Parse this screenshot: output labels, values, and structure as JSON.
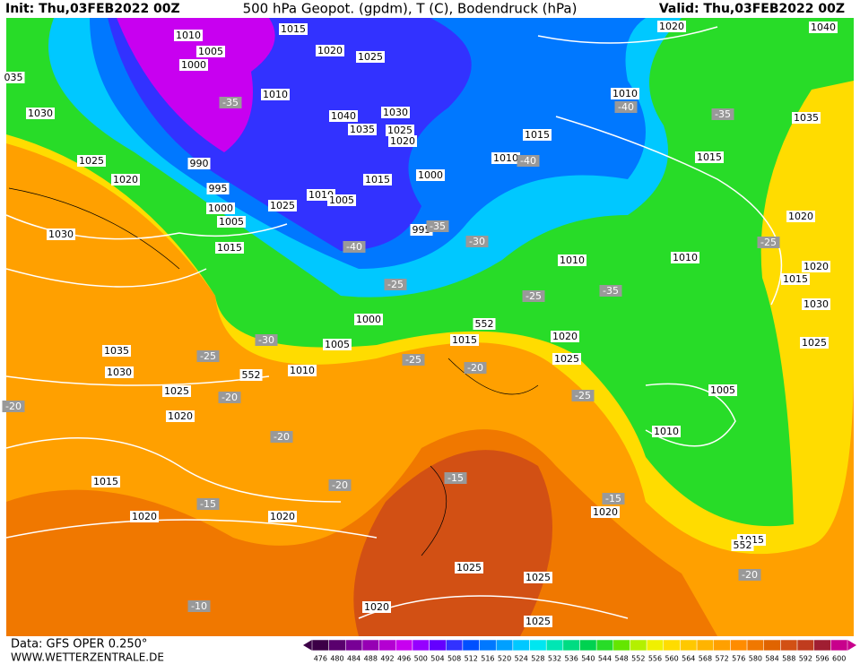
{
  "header": {
    "init": "Init: Thu,03FEB2022 00Z",
    "title": "500 hPa Geopot. (gpdm), T (C), Bodendruck (hPa)",
    "valid": "Valid: Thu,03FEB2022 00Z"
  },
  "footer": {
    "data_source": "Data: GFS OPER 0.250°",
    "website": "WWW.WETTERZENTRALE.DE"
  },
  "colorbar": {
    "labels": [
      476,
      480,
      484,
      488,
      492,
      496,
      500,
      504,
      508,
      512,
      516,
      520,
      524,
      528,
      532,
      536,
      540,
      544,
      548,
      552,
      556,
      560,
      564,
      568,
      572,
      576,
      580,
      584,
      588,
      592,
      596,
      600
    ],
    "colors": [
      "#3c0047",
      "#5a006e",
      "#780096",
      "#9600b4",
      "#b400d2",
      "#c800f0",
      "#9600ff",
      "#6400ff",
      "#3232ff",
      "#0050ff",
      "#0078ff",
      "#00a0ff",
      "#00c8ff",
      "#00e6f0",
      "#00e6b4",
      "#00dc82",
      "#00d250",
      "#28dc28",
      "#64e600",
      "#b4f000",
      "#f0f000",
      "#ffdc00",
      "#ffc800",
      "#ffb400",
      "#ffa000",
      "#ff8c00",
      "#f07800",
      "#e06400",
      "#d25014",
      "#c03c1e",
      "#a01e32",
      "#c8008c"
    ]
  },
  "map": {
    "isobar_labels": [
      "1010",
      "1005",
      "1000",
      "1015",
      "1020",
      "1025",
      "035",
      "1030",
      "1010",
      "1040",
      "1030",
      "1035",
      "1025",
      "1020",
      "1025",
      "990",
      "1020",
      "995",
      "1000",
      "1005",
      "1025",
      "1010",
      "1005",
      "1015",
      "1000",
      "995",
      "1015",
      "1030",
      "1020",
      "1040",
      "1010",
      "1015",
      "1010",
      "1015",
      "1035",
      "1020",
      "1010",
      "1010",
      "1020",
      "1015",
      "1030",
      "1000",
      "1005",
      "1010",
      "1015",
      "1020",
      "1025",
      "1025",
      "1035",
      "1030",
      "1025",
      "1020",
      "1005",
      "1010",
      "1015",
      "1020",
      "1020",
      "1020",
      "1015",
      "1025",
      "1025",
      "1020",
      "1025"
    ],
    "temperature_labels": [
      "-35",
      "-40",
      "-35",
      "-40",
      "-30",
      "-35",
      "-40",
      "-25",
      "-25",
      "-35",
      "-25",
      "-30",
      "-25",
      "-25",
      "-20",
      "-20",
      "-25",
      "-20",
      "-20",
      "-20",
      "-15",
      "-15",
      "-15",
      "-20",
      "-10"
    ],
    "height_labels": [
      "552",
      "552",
      "552"
    ]
  }
}
